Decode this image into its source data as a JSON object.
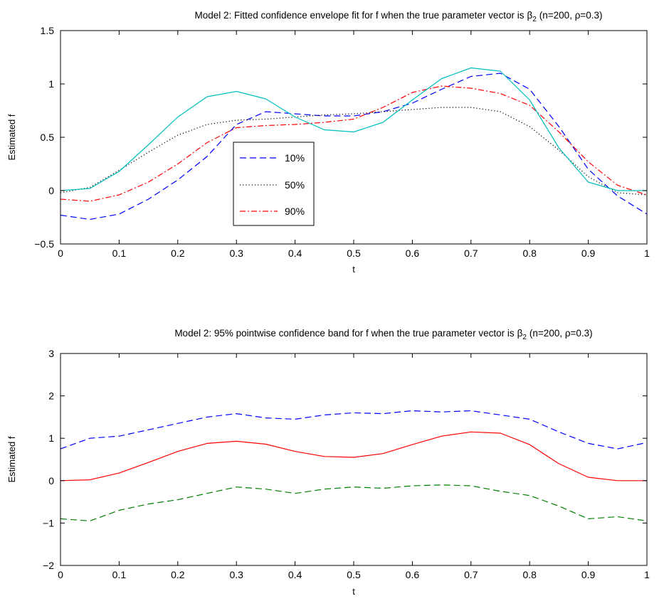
{
  "chart_data": [
    {
      "type": "line",
      "title": "Model 2: Fitted confidence envelope fit for f when the true parameter vector is",
      "title_symbol": "β",
      "title_subscript": "2",
      "title_suffix": "(n=200, ρ=0.3)",
      "xlabel": "t",
      "ylabel": "Estimated f",
      "xlim": [
        0,
        1
      ],
      "ylim": [
        -0.5,
        1.5
      ],
      "xticks": [
        0,
        0.1,
        0.2,
        0.3,
        0.4,
        0.5,
        0.6,
        0.7,
        0.8,
        0.9,
        1
      ],
      "xtick_labels": [
        "0",
        "0.1",
        "0.2",
        "0.3",
        "0.4",
        "0.5",
        "0.6",
        "0.7",
        "0.8",
        "0.9",
        "1"
      ],
      "yticks": [
        -0.5,
        0,
        0.5,
        1,
        1.5
      ],
      "ytick_labels": [
        "−0.5",
        "0",
        "0.5",
        "1",
        "1.5"
      ],
      "grid": false,
      "legend_position": "inside-center-left",
      "x": [
        0,
        0.05,
        0.1,
        0.15,
        0.2,
        0.25,
        0.3,
        0.35,
        0.4,
        0.45,
        0.5,
        0.55,
        0.6,
        0.65,
        0.7,
        0.75,
        0.8,
        0.85,
        0.9,
        0.95,
        1
      ],
      "series": [
        {
          "name": "10%",
          "color": "#0000ff",
          "dash": "dashed",
          "values": [
            -0.23,
            -0.27,
            -0.22,
            -0.08,
            0.1,
            0.32,
            0.62,
            0.74,
            0.72,
            0.7,
            0.7,
            0.74,
            0.82,
            0.95,
            1.07,
            1.1,
            0.95,
            0.6,
            0.2,
            -0.05,
            -0.22
          ]
        },
        {
          "name": "50%",
          "color": "#000000",
          "dash": "dotted",
          "values": [
            -0.02,
            0.03,
            0.19,
            0.36,
            0.52,
            0.62,
            0.66,
            0.67,
            0.69,
            0.71,
            0.72,
            0.74,
            0.76,
            0.78,
            0.78,
            0.74,
            0.6,
            0.38,
            0.13,
            -0.02,
            -0.04
          ]
        },
        {
          "name": "90%",
          "color": "#ff0000",
          "dash": "dashdot",
          "values": [
            -0.08,
            -0.1,
            -0.04,
            0.08,
            0.25,
            0.45,
            0.59,
            0.61,
            0.62,
            0.64,
            0.67,
            0.78,
            0.92,
            0.98,
            0.96,
            0.91,
            0.8,
            0.55,
            0.27,
            0.05,
            -0.04
          ]
        },
        {
          "name": "",
          "color": "#00bfbf",
          "dash": "solid",
          "values": [
            0.0,
            0.02,
            0.18,
            0.43,
            0.69,
            0.88,
            0.93,
            0.86,
            0.69,
            0.57,
            0.55,
            0.64,
            0.85,
            1.05,
            1.15,
            1.12,
            0.85,
            0.4,
            0.08,
            0.0,
            0.0
          ]
        }
      ]
    },
    {
      "type": "line",
      "title": "Model 2: 95% pointwise confidence band for f when the true parameter vector is",
      "title_symbol": "β",
      "title_subscript": "2",
      "title_suffix": "(n=200, ρ=0.3)",
      "xlabel": "t",
      "ylabel": "Estimated f",
      "xlim": [
        0,
        1
      ],
      "ylim": [
        -2,
        3
      ],
      "xticks": [
        0,
        0.1,
        0.2,
        0.3,
        0.4,
        0.5,
        0.6,
        0.7,
        0.8,
        0.9,
        1
      ],
      "xtick_labels": [
        "0",
        "0.1",
        "0.2",
        "0.3",
        "0.4",
        "0.5",
        "0.6",
        "0.7",
        "0.8",
        "0.9",
        "1"
      ],
      "yticks": [
        -2,
        -1,
        0,
        1,
        2,
        3
      ],
      "ytick_labels": [
        "−2",
        "−1",
        "0",
        "1",
        "2",
        "3"
      ],
      "grid": false,
      "x": [
        0,
        0.05,
        0.1,
        0.15,
        0.2,
        0.25,
        0.3,
        0.35,
        0.4,
        0.45,
        0.5,
        0.55,
        0.6,
        0.65,
        0.7,
        0.75,
        0.8,
        0.85,
        0.9,
        0.95,
        1
      ],
      "series": [
        {
          "name": "",
          "color": "#0000ff",
          "dash": "dashed",
          "values": [
            0.75,
            1.0,
            1.05,
            1.2,
            1.35,
            1.5,
            1.58,
            1.48,
            1.45,
            1.55,
            1.6,
            1.58,
            1.65,
            1.62,
            1.65,
            1.55,
            1.45,
            1.15,
            0.88,
            0.75,
            0.9
          ]
        },
        {
          "name": "",
          "color": "#ff0000",
          "dash": "solid",
          "values": [
            0.0,
            0.02,
            0.18,
            0.43,
            0.69,
            0.88,
            0.93,
            0.86,
            0.69,
            0.57,
            0.55,
            0.64,
            0.85,
            1.05,
            1.15,
            1.12,
            0.85,
            0.4,
            0.08,
            0.0,
            0.0
          ]
        },
        {
          "name": "",
          "color": "#007f00",
          "dash": "dashed",
          "values": [
            -0.9,
            -0.95,
            -0.7,
            -0.55,
            -0.45,
            -0.3,
            -0.15,
            -0.2,
            -0.3,
            -0.2,
            -0.15,
            -0.18,
            -0.12,
            -0.1,
            -0.12,
            -0.25,
            -0.35,
            -0.6,
            -0.9,
            -0.85,
            -0.95
          ]
        }
      ]
    }
  ]
}
